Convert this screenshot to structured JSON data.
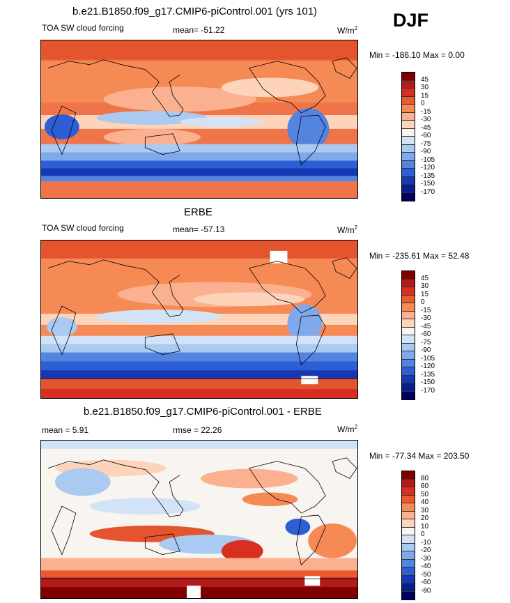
{
  "season": "DJF",
  "units": {
    "base": "W/m",
    "exp": "2"
  },
  "chart_data": [
    {
      "type": "heatmap",
      "title": "b.e21.B1850.f09_g17.CMIP6-piControl.001 (yrs 101)",
      "variable": "TOA SW cloud forcing",
      "stat_label": "mean=",
      "stat_value": "-51.22",
      "minmax": "Min = -186.10 Max =   0.00",
      "colorbar": {
        "levels": [
          "45",
          "30",
          "15",
          "0",
          "-15",
          "-30",
          "-45",
          "-60",
          "-75",
          "-90",
          "-105",
          "-120",
          "-135",
          "-150",
          "-170"
        ],
        "colors": [
          "#800000",
          "#b31b1b",
          "#d73020",
          "#ea5a2e",
          "#f58a55",
          "#fbb190",
          "#fdd4b9",
          "#f8f4ef",
          "#d3e3f7",
          "#aacaf1",
          "#7fa9ea",
          "#5284e0",
          "#2d5ed4",
          "#1538b5",
          "#061e8a",
          "#000060"
        ]
      }
    },
    {
      "type": "heatmap",
      "title": "ERBE",
      "variable": "TOA SW cloud forcing",
      "stat_label": "mean=",
      "stat_value": "-57.13",
      "minmax": "Min = -235.61 Max =  52.48",
      "colorbar": {
        "levels": [
          "45",
          "30",
          "15",
          "0",
          "-15",
          "-30",
          "-45",
          "-60",
          "-75",
          "-90",
          "-105",
          "-120",
          "-135",
          "-150",
          "-170"
        ],
        "colors": [
          "#800000",
          "#b31b1b",
          "#d73020",
          "#ea5a2e",
          "#f58a55",
          "#fbb190",
          "#fdd4b9",
          "#f8f4ef",
          "#d3e3f7",
          "#aacaf1",
          "#7fa9ea",
          "#5284e0",
          "#2d5ed4",
          "#1538b5",
          "#061e8a",
          "#000060"
        ]
      }
    },
    {
      "type": "heatmap",
      "title": "b.e21.B1850.f09_g17.CMIP6-piControl.001 - ERBE",
      "stat_label": "mean =",
      "stat_value": "5.91",
      "rmse_label": "rmse =",
      "rmse_value": "22.26",
      "minmax": "Min = -77.34 Max = 203.50",
      "colorbar": {
        "levels": [
          "80",
          "60",
          "50",
          "40",
          "30",
          "20",
          "10",
          "0",
          "-10",
          "-20",
          "-30",
          "-40",
          "-50",
          "-60",
          "-80"
        ],
        "colors": [
          "#800000",
          "#b31b1b",
          "#d73020",
          "#ea5a2e",
          "#f58a55",
          "#fbb190",
          "#fdd4b9",
          "#f8f4ef",
          "#d3e3f7",
          "#aacaf1",
          "#7fa9ea",
          "#5284e0",
          "#2d5ed4",
          "#1538b5",
          "#061e8a",
          "#000060"
        ]
      }
    }
  ]
}
